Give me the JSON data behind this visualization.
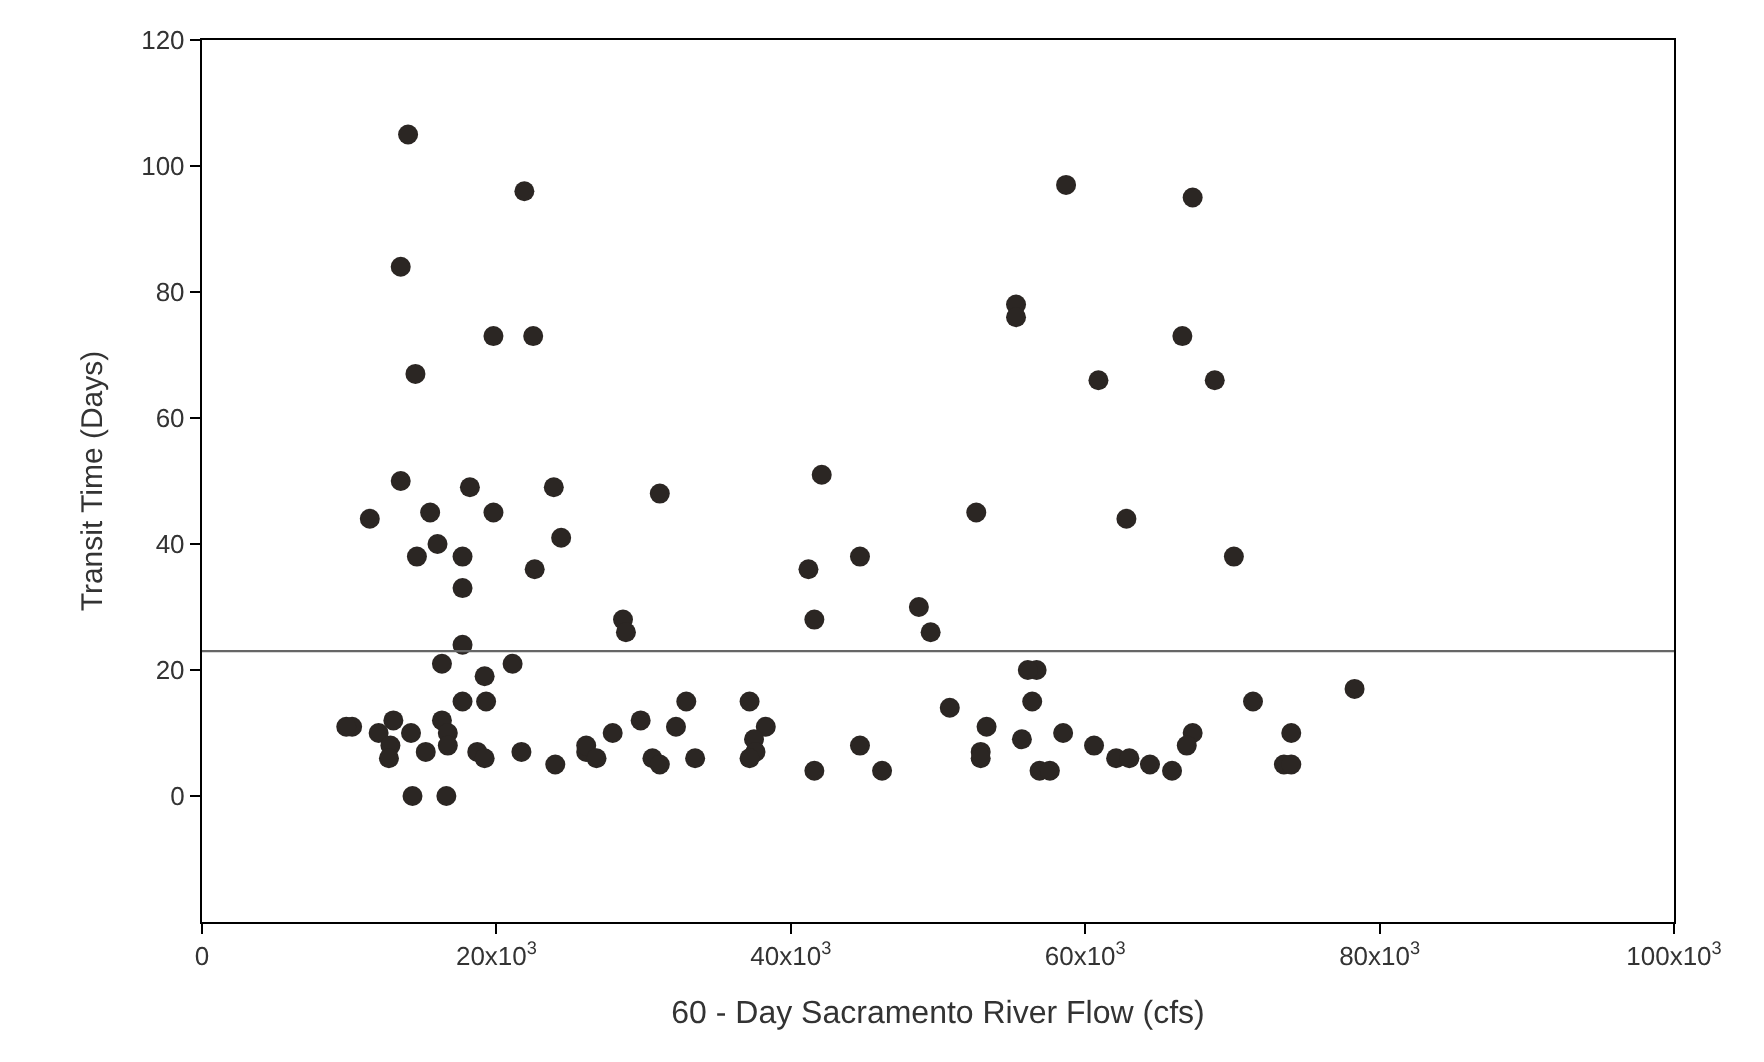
{
  "chart_data": {
    "type": "scatter",
    "xlabel": "60 - Day Sacramento River Flow (cfs)",
    "ylabel": "Transit Time (Days)",
    "xlim": [
      0,
      100000
    ],
    "ylim": [
      -20,
      120
    ],
    "xticks": [
      0,
      {
        "value": 20000,
        "label": "20x10$^{3}$"
      },
      {
        "value": 40000,
        "label": "40x10$^{3}$"
      },
      {
        "value": 60000,
        "label": "60x10$^{3}$"
      },
      {
        "value": 80000,
        "label": "80x10$^{3}$"
      },
      {
        "value": 100000,
        "label": "100x10$^{3}$"
      }
    ],
    "yticks": [
      0,
      20,
      40,
      60,
      80,
      100,
      120
    ],
    "marker": "circle",
    "ref_lines": [
      {
        "axis": "y",
        "value": 23,
        "color": "#666666"
      }
    ],
    "series": [
      {
        "color": "#2b2623",
        "x": [
          14000,
          21900,
          13500,
          19800,
          22500,
          14500,
          13500,
          18200,
          23900,
          11400,
          15500,
          19800,
          24400,
          16000,
          14600,
          17700,
          22600,
          17700,
          17700,
          16300,
          21100,
          19200,
          17700,
          19300,
          10200,
          9800,
          13000,
          12000,
          14200,
          16300,
          16700,
          12800,
          12700,
          15200,
          16700,
          18700,
          19200,
          21700,
          24000,
          26100,
          14300,
          16600,
          31100,
          42100,
          52600,
          41200,
          44700,
          28600,
          28800,
          41600,
          48700,
          49500,
          26100,
          26800,
          27900,
          29800,
          30600,
          31100,
          32200,
          32900,
          33500,
          37200,
          38300,
          37500,
          37600,
          37200,
          41600,
          44700,
          46200,
          50800,
          53300,
          52900,
          52900,
          58700,
          67300,
          55300,
          55300,
          66600,
          60900,
          68800,
          62800,
          70100,
          56700,
          56100,
          56400,
          55700,
          58500,
          56900,
          57600,
          60600,
          62100,
          63000,
          64400,
          65900,
          67300,
          66900,
          71400,
          74000,
          73500,
          74000,
          78300
        ],
        "values": [
          105,
          96,
          84,
          73,
          73,
          67,
          50,
          49,
          49,
          44,
          45,
          45,
          41,
          40,
          38,
          38,
          36,
          33,
          24,
          21,
          21,
          19,
          15,
          15,
          11,
          11,
          12,
          10,
          10,
          12,
          10,
          8,
          6,
          7,
          8,
          7,
          6,
          7,
          5,
          7,
          0,
          0,
          48,
          51,
          45,
          36,
          38,
          28,
          26,
          28,
          30,
          26,
          8,
          6,
          10,
          12,
          6,
          5,
          11,
          15,
          6,
          15,
          11,
          9,
          7,
          6,
          4,
          8,
          4,
          14,
          11,
          7,
          6,
          97,
          95,
          78,
          76,
          73,
          66,
          66,
          44,
          38,
          20,
          20,
          15,
          9,
          10,
          4,
          4,
          8,
          6,
          6,
          5,
          4,
          10,
          8,
          15,
          10,
          5,
          5,
          17
        ]
      }
    ]
  }
}
